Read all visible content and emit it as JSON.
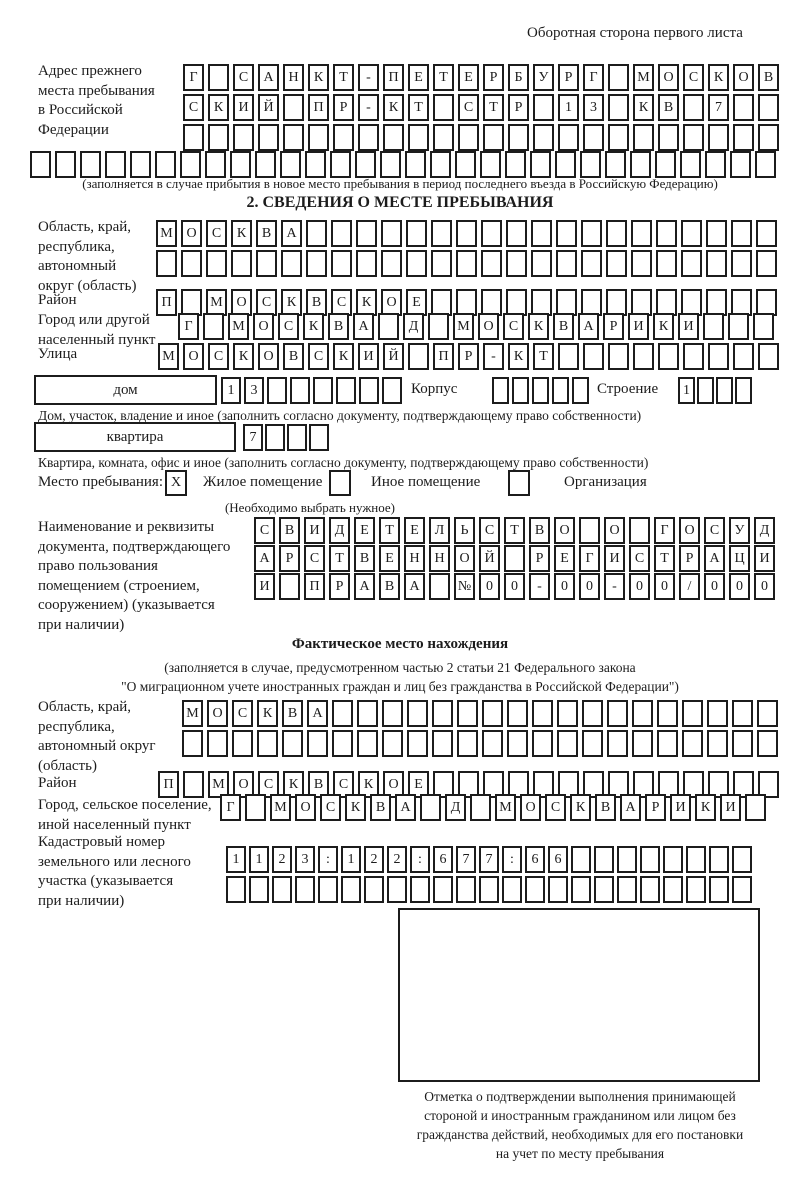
{
  "page": {
    "title": "Оборотная сторона первого листа"
  },
  "colors": {
    "ink": "#1c1c1c",
    "paper": "#ffffff"
  },
  "prev_address": {
    "label_lines": [
      "Адрес прежнего",
      "места пребывания",
      "в Российской",
      "Федерации"
    ],
    "row1": {
      "text": "Г САНКТ-ПЕТЕРБУРГ МОСКОВ",
      "count": 24
    },
    "row2": {
      "text": "СКИЙ ПР-КТ СТР 13 КВ 7",
      "count": 24
    },
    "row3": {
      "text": "",
      "count": 24
    },
    "row4": {
      "text": "",
      "count": 30
    },
    "note": "(заполняется в случае прибытия в новое место пребывания в период последнего въезда в Российскую Федерацию)"
  },
  "section2": {
    "title": "2. СВЕДЕНИЯ О МЕСТЕ ПРЕБЫВАНИЯ",
    "region": {
      "label_lines": [
        "Область, край,",
        "республика,",
        "автономный",
        "округ (область)"
      ],
      "row1": {
        "text": "МОСКВА",
        "count": 25
      },
      "row2": {
        "text": "",
        "count": 25
      }
    },
    "district": {
      "label": "Район",
      "row": {
        "text": "П МОСКВСКОЕ",
        "count": 25
      }
    },
    "city": {
      "label_lines": [
        "Город или другой",
        "населенный пункт"
      ],
      "row": {
        "text": "Г МОСКВА Д МОСКВАРИКИ",
        "count": 24
      }
    },
    "street": {
      "label": "Улица",
      "row": {
        "text": "МОСКОВСКИЙ ПР-КТ",
        "count": 25
      }
    },
    "house": {
      "box_label": "дом",
      "cells": {
        "text": "13",
        "count": 8
      },
      "korpus_label": "Корпус",
      "korpus_cells": {
        "text": "",
        "count": 5
      },
      "stroenie_label": "Строение",
      "stroenie_cells": {
        "text": "1",
        "count": 4
      },
      "note": "Дом, участок, владение и иное (заполнить согласно документу, подтверждающему право собственности)"
    },
    "apartment": {
      "box_label": "квартира",
      "cells": {
        "text": "7",
        "count": 4
      },
      "note": "Квартира, комната, офис и иное (заполнить согласно документу, подтверждающему право собственности)"
    },
    "stay_type": {
      "label": "Место пребывания:",
      "options": [
        {
          "label": "Жилое помещение",
          "mark": "X",
          "checked": true
        },
        {
          "label": "Иное помещение",
          "mark": "",
          "checked": false
        },
        {
          "label": "Организация",
          "mark": "",
          "checked": false
        }
      ],
      "note": "(Необходимо выбрать нужное)"
    },
    "document": {
      "label_lines": [
        "Наименование и реквизиты",
        "документа, подтверждающего",
        "право пользования",
        "помещением (строением,",
        "сооружением) (указывается",
        "при наличии)"
      ],
      "row1": {
        "text": "СВИДЕТЕЛЬСТВО О ГОСУД",
        "count": 21
      },
      "row2": {
        "text": "АРСТВЕННОЙ РЕГИСТРАЦИ",
        "count": 21
      },
      "row3": {
        "text": "И ПРАВА №00-00-00/000",
        "count": 21
      }
    }
  },
  "actual_location": {
    "title": "Фактическое место нахождения",
    "note_lines": [
      "(заполняется в случае, предусмотренном частью 2 статьи 21 Федерального закона",
      "\"О миграционном учете иностранных граждан и лиц без гражданства в Российской Федерации\")"
    ],
    "region": {
      "label_lines": [
        "Область, край,",
        "республика,",
        "автономный округ",
        "(область)"
      ],
      "row1": {
        "text": "МОСКВА",
        "count": 24
      },
      "row2": {
        "text": "",
        "count": 24
      }
    },
    "district": {
      "label": "Район",
      "row": {
        "text": "П МОСКВСКОЕ",
        "count": 25
      }
    },
    "city": {
      "label_lines": [
        "Город, сельское поселение,",
        "иной населенный пункт"
      ],
      "row": {
        "text": "Г МОСКВА Д МОСКВАРИКИ",
        "count": 22
      }
    },
    "cadastre": {
      "label_lines": [
        "Кадастровый номер",
        "земельного или лесного",
        "участка (указывается",
        "при наличии)"
      ],
      "row1": {
        "text": "1123:122:677:66",
        "count": 23
      },
      "row2": {
        "text": "",
        "count": 23
      }
    },
    "stamp_caption_lines": [
      "Отметка о подтверждении выполнения принимающей",
      "стороной и иностранным гражданином или лицом без",
      "гражданства действий, необходимых для его постановки",
      "на учет по месту пребывания"
    ]
  }
}
